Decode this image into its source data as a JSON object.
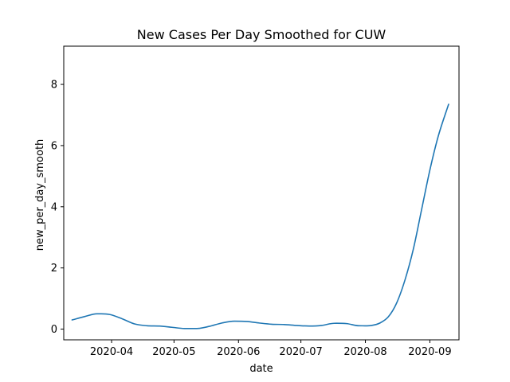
{
  "chart_data": {
    "type": "line",
    "title": "New Cases Per Day Smoothed for CUW",
    "xlabel": "date",
    "ylabel": "new_per_day_smooth",
    "x_range": [
      "2020-03-09",
      "2020-09-15"
    ],
    "ylim": [
      -0.35,
      9.25
    ],
    "x_ticks": [
      {
        "date": "2020-04-01",
        "label": "2020-04"
      },
      {
        "date": "2020-05-01",
        "label": "2020-05"
      },
      {
        "date": "2020-06-01",
        "label": "2020-06"
      },
      {
        "date": "2020-07-01",
        "label": "2020-07"
      },
      {
        "date": "2020-08-01",
        "label": "2020-08"
      },
      {
        "date": "2020-09-01",
        "label": "2020-09"
      }
    ],
    "y_ticks": [
      0,
      2,
      4,
      6,
      8
    ],
    "grid": false,
    "colors": {
      "line": "#1f77b4"
    },
    "series": [
      {
        "x": [
          "2020-03-13",
          "2020-03-19",
          "2020-03-25",
          "2020-03-31",
          "2020-04-06",
          "2020-04-12",
          "2020-04-18",
          "2020-04-24",
          "2020-04-30",
          "2020-05-06",
          "2020-05-12",
          "2020-05-18",
          "2020-05-24",
          "2020-05-30",
          "2020-06-05",
          "2020-06-11",
          "2020-06-17",
          "2020-06-23",
          "2020-06-29",
          "2020-07-05",
          "2020-07-11",
          "2020-07-17",
          "2020-07-23",
          "2020-07-29",
          "2020-08-04",
          "2020-08-08",
          "2020-08-12",
          "2020-08-16",
          "2020-08-20",
          "2020-08-24",
          "2020-08-28",
          "2020-09-01",
          "2020-09-05",
          "2020-09-10"
        ],
        "y": [
          0.3,
          0.41,
          0.5,
          0.48,
          0.34,
          0.17,
          0.11,
          0.1,
          0.06,
          0.02,
          0.02,
          0.09,
          0.2,
          0.26,
          0.25,
          0.2,
          0.16,
          0.15,
          0.12,
          0.1,
          0.12,
          0.19,
          0.18,
          0.11,
          0.12,
          0.2,
          0.4,
          0.85,
          1.6,
          2.6,
          3.9,
          5.2,
          6.3,
          7.35
        ]
      }
    ]
  }
}
